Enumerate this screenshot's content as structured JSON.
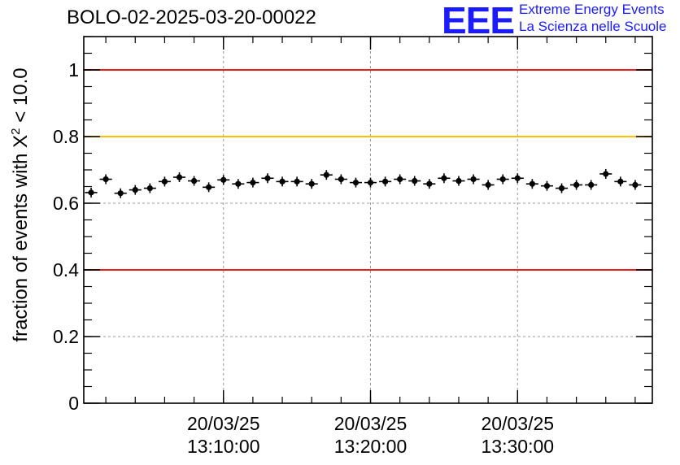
{
  "header": {
    "run_title": "BOLO-02-2025-03-20-00022"
  },
  "logo": {
    "mark": "EEE",
    "line1": "Extreme Energy Events",
    "line2": "La Scienza nelle Scuole",
    "color": "#1b1bff"
  },
  "chart_data": {
    "type": "scatter",
    "title": "BOLO-02-2025-03-20-00022",
    "ylabel_prefix": "fraction of events with ",
    "ylabel_symbol": "X",
    "ylabel_exponent": "2",
    "ylabel_suffix": " < 10.0",
    "xlabel": "",
    "ylim": [
      0,
      1.1
    ],
    "xlim": [
      "20/03/25 13:01:00",
      "20/03/25 13:39:10"
    ],
    "x_ticks": [
      {
        "x": "20/03/25 13:10:00",
        "date": "20/03/25",
        "time": "13:10:00"
      },
      {
        "x": "20/03/25 13:20:00",
        "date": "20/03/25",
        "time": "13:20:00"
      },
      {
        "x": "20/03/25 13:30:00",
        "date": "20/03/25",
        "time": "13:30:00"
      }
    ],
    "y_ticks": [
      "0",
      "0.2",
      "0.4",
      "0.6",
      "0.8",
      "1"
    ],
    "grid": true,
    "reference_lines": [
      {
        "y": 1.0,
        "color": "#e8201c"
      },
      {
        "y": 0.8,
        "color": "#ffc000"
      },
      {
        "y": 0.4,
        "color": "#e8201c"
      }
    ],
    "marker_color": "#000000",
    "x_error_seconds": 25,
    "points": [
      {
        "x": "20/03/25 13:01:00",
        "y": 0.632
      },
      {
        "x": "20/03/25 13:02:00",
        "y": 0.672
      },
      {
        "x": "20/03/25 13:03:00",
        "y": 0.63
      },
      {
        "x": "20/03/25 13:04:00",
        "y": 0.64
      },
      {
        "x": "20/03/25 13:05:00",
        "y": 0.645
      },
      {
        "x": "20/03/25 13:06:00",
        "y": 0.665
      },
      {
        "x": "20/03/25 13:07:00",
        "y": 0.678
      },
      {
        "x": "20/03/25 13:08:00",
        "y": 0.667
      },
      {
        "x": "20/03/25 13:09:00",
        "y": 0.648
      },
      {
        "x": "20/03/25 13:10:00",
        "y": 0.67
      },
      {
        "x": "20/03/25 13:11:00",
        "y": 0.658
      },
      {
        "x": "20/03/25 13:12:00",
        "y": 0.662
      },
      {
        "x": "20/03/25 13:13:00",
        "y": 0.675
      },
      {
        "x": "20/03/25 13:14:00",
        "y": 0.665
      },
      {
        "x": "20/03/25 13:15:00",
        "y": 0.665
      },
      {
        "x": "20/03/25 13:16:00",
        "y": 0.658
      },
      {
        "x": "20/03/25 13:17:00",
        "y": 0.685
      },
      {
        "x": "20/03/25 13:18:00",
        "y": 0.672
      },
      {
        "x": "20/03/25 13:19:00",
        "y": 0.662
      },
      {
        "x": "20/03/25 13:20:00",
        "y": 0.662
      },
      {
        "x": "20/03/25 13:21:00",
        "y": 0.665
      },
      {
        "x": "20/03/25 13:22:00",
        "y": 0.672
      },
      {
        "x": "20/03/25 13:23:00",
        "y": 0.667
      },
      {
        "x": "20/03/25 13:24:00",
        "y": 0.658
      },
      {
        "x": "20/03/25 13:25:00",
        "y": 0.675
      },
      {
        "x": "20/03/25 13:26:00",
        "y": 0.667
      },
      {
        "x": "20/03/25 13:27:00",
        "y": 0.672
      },
      {
        "x": "20/03/25 13:28:00",
        "y": 0.655
      },
      {
        "x": "20/03/25 13:29:00",
        "y": 0.672
      },
      {
        "x": "20/03/25 13:30:00",
        "y": 0.675
      },
      {
        "x": "20/03/25 13:31:00",
        "y": 0.658
      },
      {
        "x": "20/03/25 13:32:00",
        "y": 0.652
      },
      {
        "x": "20/03/25 13:33:00",
        "y": 0.645
      },
      {
        "x": "20/03/25 13:34:00",
        "y": 0.655
      },
      {
        "x": "20/03/25 13:35:00",
        "y": 0.655
      },
      {
        "x": "20/03/25 13:36:00",
        "y": 0.688
      },
      {
        "x": "20/03/25 13:37:00",
        "y": 0.665
      },
      {
        "x": "20/03/25 13:38:00",
        "y": 0.655
      }
    ]
  }
}
